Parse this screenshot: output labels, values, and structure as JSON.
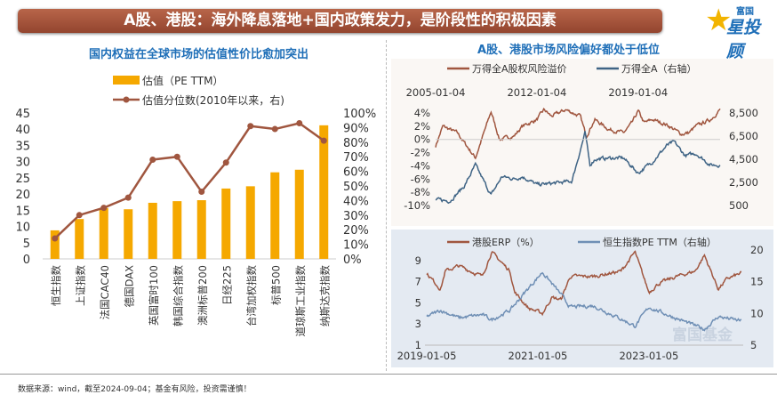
{
  "header": {
    "title": "A股、港股：海外降息落地+国内政策发力，是阶段性的积极因素",
    "logo_top": "富国",
    "logo_main": "星投顾"
  },
  "footnote": "数据来源：wind，截至2024-09-04；基金有风险，投资需谨慎！",
  "watermark": "富国基金",
  "colors": {
    "bar": "#f5a800",
    "line_brown": "#a0563f",
    "line_blue": "#3f6485",
    "line_lightblue": "#6f8fb5",
    "title_blue": "#1f6fb8"
  },
  "chart_data": [
    {
      "type": "bar+line",
      "title": "国内权益在全球市场的估值性价比愈加突出",
      "categories": [
        "恒生指数",
        "上证指数",
        "法国CAC40",
        "德国DAX",
        "英国富时100",
        "韩国综合指数",
        "澳洲标普200",
        "日经225",
        "台湾加权指数",
        "标普500",
        "道琼斯工业指数",
        "纳斯达克指数"
      ],
      "series": [
        {
          "name": "估值（PE TTM）",
          "type": "bar",
          "axis": "left",
          "values": [
            8.8,
            12.3,
            15.7,
            15.3,
            17.3,
            17.8,
            18.1,
            21.7,
            22.4,
            26.7,
            27.5,
            41.2
          ]
        },
        {
          "name": "估值分位数(2010年以来，右)",
          "type": "line",
          "axis": "right",
          "values": [
            0.14,
            0.3,
            0.35,
            0.42,
            0.68,
            0.7,
            0.46,
            0.66,
            0.91,
            0.89,
            0.93,
            0.81
          ]
        }
      ],
      "left_ticks": [
        "0",
        "5",
        "10",
        "15",
        "20",
        "25",
        "30",
        "35",
        "40",
        "45"
      ],
      "ylim": [
        0,
        45
      ],
      "right_ticks": [
        "0%",
        "10%",
        "20%",
        "30%",
        "40%",
        "50%",
        "60%",
        "70%",
        "80%",
        "90%",
        "100%"
      ],
      "y2lim": [
        0,
        1
      ],
      "legend": "top"
    },
    {
      "type": "line",
      "title": "A股、港股市场风险偏好都处于低位",
      "x_ticks": [
        "2005-01-04",
        "2012-01-04",
        "2019-01-04"
      ],
      "xlim": [
        "2005-01",
        "2024-09"
      ],
      "left_ticks": [
        "4%",
        "2%",
        "0%",
        "-2%",
        "-4%",
        "-6%",
        "-8%",
        "-10%"
      ],
      "ylim": [
        -10,
        4
      ],
      "right_ticks": [
        "8,500",
        "6,500",
        "4,500",
        "2,500",
        "500"
      ],
      "y2lim": [
        500,
        8500
      ],
      "series": [
        {
          "name": "万得全A股权风险溢价",
          "axis": "left",
          "points": [
            [
              "2005-01",
              -1
            ],
            [
              "2005-07",
              2
            ],
            [
              "2006-07",
              1
            ],
            [
              "2007-10",
              -2.8
            ],
            [
              "2008-11",
              4.2
            ],
            [
              "2009-06",
              0
            ],
            [
              "2010-06",
              0.5
            ],
            [
              "2011-01",
              2
            ],
            [
              "2012-01",
              3
            ],
            [
              "2012-07",
              4.5
            ],
            [
              "2013-01",
              3.5
            ],
            [
              "2014-01",
              4.5
            ],
            [
              "2015-01",
              3.5
            ],
            [
              "2015-06",
              0.5
            ],
            [
              "2016-01",
              3
            ],
            [
              "2017-01",
              1.5
            ],
            [
              "2018-01",
              1
            ],
            [
              "2018-08",
              2.5
            ],
            [
              "2019-01",
              4.3
            ],
            [
              "2019-06",
              2.5
            ],
            [
              "2020-01",
              3
            ],
            [
              "2021-01",
              2.2
            ],
            [
              "2022-01",
              0.8
            ],
            [
              "2022-07",
              1
            ],
            [
              "2023-01",
              2
            ],
            [
              "2024-01",
              3
            ],
            [
              "2024-09",
              4.5
            ]
          ]
        },
        {
          "name": "万得全A（右轴）",
          "axis": "right",
          "points": [
            [
              "2005-01",
              1000
            ],
            [
              "2006-01",
              900
            ],
            [
              "2007-01",
              2200
            ],
            [
              "2007-10",
              4000
            ],
            [
              "2008-11",
              1400
            ],
            [
              "2009-08",
              3000
            ],
            [
              "2010-06",
              2800
            ],
            [
              "2011-01",
              3000
            ],
            [
              "2012-01",
              2300
            ],
            [
              "2013-01",
              2400
            ],
            [
              "2014-06",
              2600
            ],
            [
              "2015-05",
              6800
            ],
            [
              "2015-09",
              4000
            ],
            [
              "2016-01",
              4500
            ],
            [
              "2017-01",
              4600
            ],
            [
              "2018-01",
              4600
            ],
            [
              "2019-01",
              3300
            ],
            [
              "2020-01",
              4300
            ],
            [
              "2021-01",
              5700
            ],
            [
              "2021-07",
              6000
            ],
            [
              "2022-04",
              4800
            ],
            [
              "2023-01",
              5000
            ],
            [
              "2024-01",
              4000
            ],
            [
              "2024-09",
              4000
            ]
          ]
        }
      ],
      "legend": "top"
    },
    {
      "type": "line",
      "x_ticks": [
        "2019-01-05",
        "2021-01-05",
        "2023-01-05"
      ],
      "xlim": [
        "2019-01",
        "2024-09"
      ],
      "left_ticks": [
        "9",
        "7",
        "5",
        "3",
        "1"
      ],
      "ylim": [
        1,
        10
      ],
      "right_ticks": [
        "20",
        "15",
        "10",
        "5"
      ],
      "y2lim": [
        5,
        20
      ],
      "series": [
        {
          "name": "港股ERP（%）",
          "axis": "left",
          "points": [
            [
              "2019-01",
              7.8
            ],
            [
              "2019-04",
              6.3
            ],
            [
              "2019-05",
              8
            ],
            [
              "2019-08",
              8.5
            ],
            [
              "2020-01",
              7.5
            ],
            [
              "2020-03",
              9.8
            ],
            [
              "2020-07",
              8
            ],
            [
              "2020-08",
              6
            ],
            [
              "2020-11",
              4.5
            ],
            [
              "2021-02",
              4
            ],
            [
              "2021-04",
              5.5
            ],
            [
              "2021-06",
              5.3
            ],
            [
              "2021-08",
              7.5
            ],
            [
              "2022-01",
              7.5
            ],
            [
              "2022-07",
              8
            ],
            [
              "2022-10",
              9.8
            ],
            [
              "2023-01",
              6
            ],
            [
              "2023-03",
              6.8
            ],
            [
              "2023-07",
              7.5
            ],
            [
              "2023-11",
              8
            ],
            [
              "2024-01",
              9.5
            ],
            [
              "2024-04",
              6.3
            ],
            [
              "2024-06",
              7.3
            ],
            [
              "2024-09",
              7.8
            ]
          ]
        },
        {
          "name": "恒生指数PE TTM（右轴）",
          "axis": "right",
          "points": [
            [
              "2019-01",
              9.5
            ],
            [
              "2019-04",
              10.5
            ],
            [
              "2019-08",
              9.3
            ],
            [
              "2020-01",
              9.8
            ],
            [
              "2020-03",
              9
            ],
            [
              "2020-07",
              10.5
            ],
            [
              "2020-11",
              14
            ],
            [
              "2021-02",
              16.5
            ],
            [
              "2021-06",
              13
            ],
            [
              "2021-08",
              11
            ],
            [
              "2022-01",
              11.2
            ],
            [
              "2022-06",
              9.5
            ],
            [
              "2022-10",
              8
            ],
            [
              "2023-01",
              11
            ],
            [
              "2023-06",
              9.5
            ],
            [
              "2024-01",
              7.5
            ],
            [
              "2024-04",
              9.5
            ],
            [
              "2024-09",
              8.8
            ]
          ]
        }
      ],
      "legend": "top"
    }
  ]
}
